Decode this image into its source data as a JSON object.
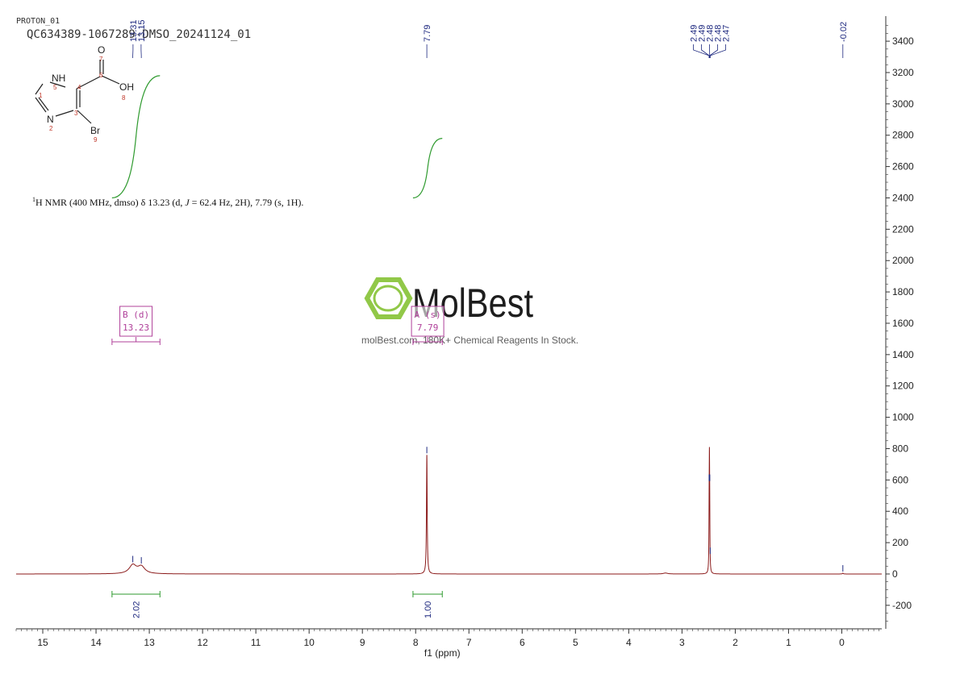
{
  "header": {
    "experiment": "PROTON_01",
    "sample": "QC634389-1067289-DMSO_20241124_01"
  },
  "structure": {
    "atoms": {
      "o7_sym": "O",
      "o7_num": "7",
      "c6_num": "6",
      "oh_sym": "OH",
      "oh_num": "8",
      "nh_sym": "NH",
      "nh_num": "5",
      "c4_num": "4",
      "c1_num": "1",
      "c3_num": "3",
      "n2_sym": "N",
      "n2_num": "2",
      "br_sym": "Br",
      "br_num": "9"
    }
  },
  "nmr_summary": {
    "prefix": "H NMR (400 MHz, dmso) δ 13.23 (d, ",
    "j_symbol": "J",
    "suffix": " = 62.4 Hz, 2H), 7.79 (s, 1H).",
    "superscript": "1"
  },
  "watermark": {
    "brand": "MolBest",
    "tagline": "molBest.com, 180K+ Chemical Reagents In Stock.",
    "color": "#8cc63f"
  },
  "colors": {
    "spectrum": "#8b1a1a",
    "peak_label": "#1f2a80",
    "integral": "#2e9a2e",
    "multiplet": "#b0409a",
    "axis": "#333333"
  },
  "chart_data": {
    "type": "line",
    "title": "",
    "xlabel": "f1 (ppm)",
    "ylabel": "",
    "xlim": [
      15.5,
      -0.75
    ],
    "ylim": [
      -350,
      3560
    ],
    "x_ticks": [
      15,
      14,
      13,
      12,
      11,
      10,
      9,
      8,
      7,
      6,
      5,
      4,
      3,
      2,
      1,
      0
    ],
    "y_ticks": [
      -200,
      0,
      200,
      400,
      600,
      800,
      1000,
      1200,
      1400,
      1600,
      1800,
      2000,
      2200,
      2400,
      2600,
      2800,
      3000,
      3200,
      3400
    ],
    "grid": false,
    "series": [
      {
        "peaks": [
          {
            "ppm": 13.31,
            "height": 55,
            "width": 0.08
          },
          {
            "ppm": 13.15,
            "height": 45,
            "width": 0.08
          },
          {
            "ppm": 7.79,
            "height": 760,
            "width": 0.008
          },
          {
            "ppm": 2.49,
            "height": 330,
            "width": 0.005
          },
          {
            "ppm": 2.485,
            "height": 480,
            "width": 0.004
          },
          {
            "ppm": 2.48,
            "height": 330,
            "width": 0.005
          },
          {
            "ppm": 3.31,
            "height": 6,
            "width": 0.05
          },
          {
            "ppm": -0.02,
            "height": 5,
            "width": 0.01
          }
        ]
      }
    ],
    "peak_labels": [
      {
        "text": "13.31",
        "ppm": 13.31
      },
      {
        "text": "13.15",
        "ppm": 13.15
      },
      {
        "text": "7.79",
        "ppm": 7.79
      },
      {
        "text": "2.49",
        "ppm": 2.49
      },
      {
        "text": "2.49",
        "ppm": 2.49
      },
      {
        "text": "2.48",
        "ppm": 2.48
      },
      {
        "text": "2.48",
        "ppm": 2.48
      },
      {
        "text": "2.47",
        "ppm": 2.47
      },
      {
        "text": "-0.02",
        "ppm": -0.02
      }
    ],
    "integrals": [
      {
        "from": 13.7,
        "to": 12.8,
        "value": "2.02",
        "curve_bottom": 2400,
        "curve_top": 3180
      },
      {
        "from": 8.05,
        "to": 7.5,
        "value": "1.00",
        "curve_bottom": 2400,
        "curve_top": 2780
      }
    ],
    "multiplets": [
      {
        "label": "B (d)",
        "shift": "13.23",
        "from": 13.7,
        "to": 12.8
      },
      {
        "label": "A (s)",
        "shift": "7.79",
        "from": 8.05,
        "to": 7.5
      }
    ]
  }
}
